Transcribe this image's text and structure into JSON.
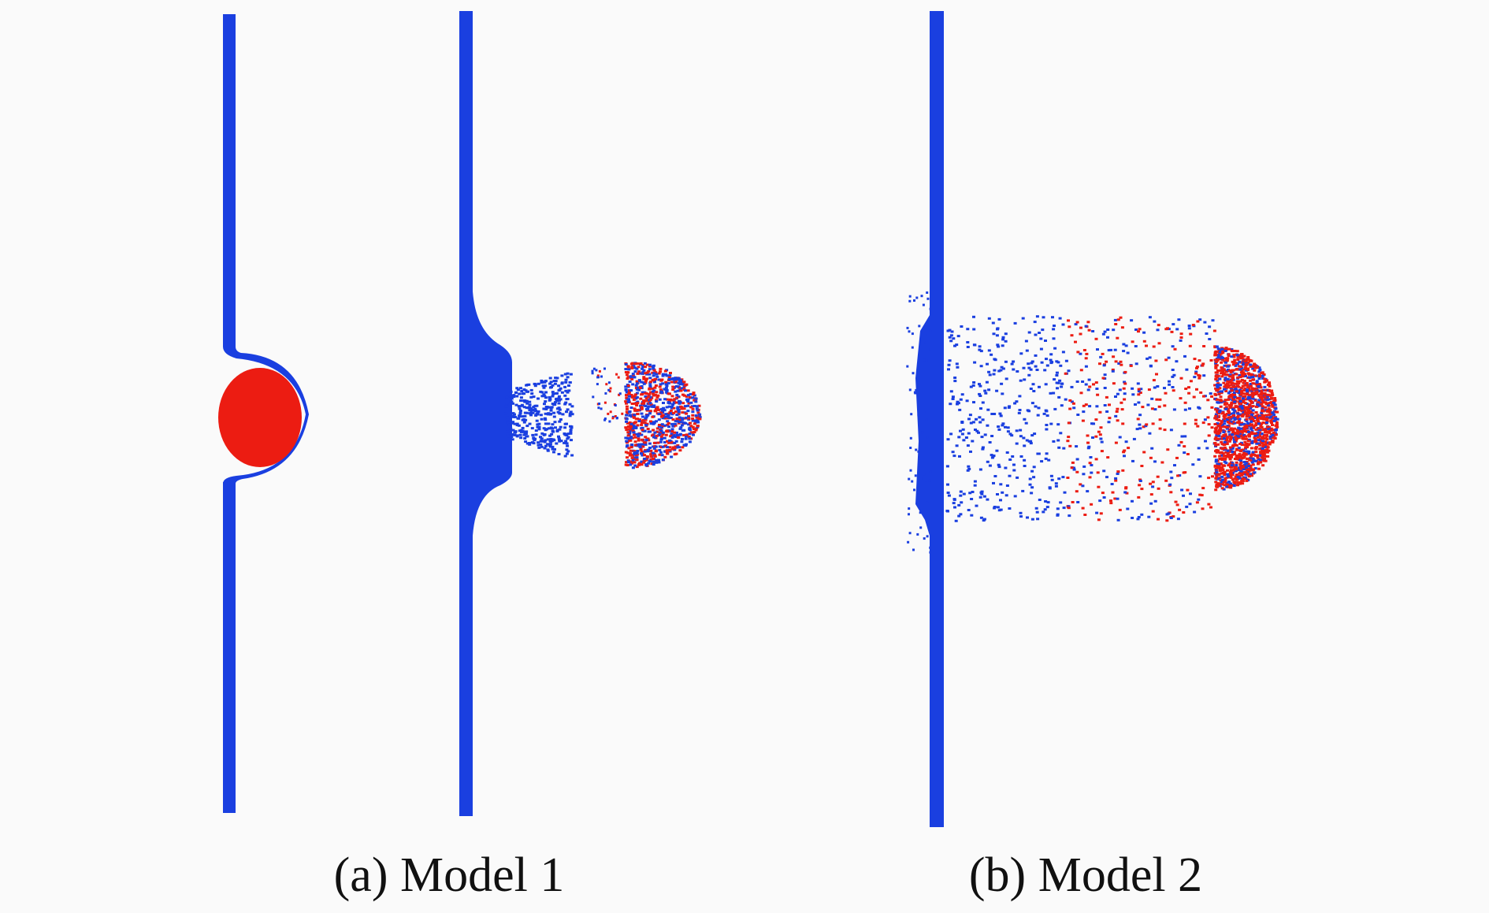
{
  "figure": {
    "captions": {
      "a": "(a) Model 1",
      "b": "(b) Model 2"
    },
    "colors": {
      "background": "#fafafa",
      "plate": "#1a3fe0",
      "projectile": "#ec1c12",
      "caption_text": "#111111"
    }
  }
}
